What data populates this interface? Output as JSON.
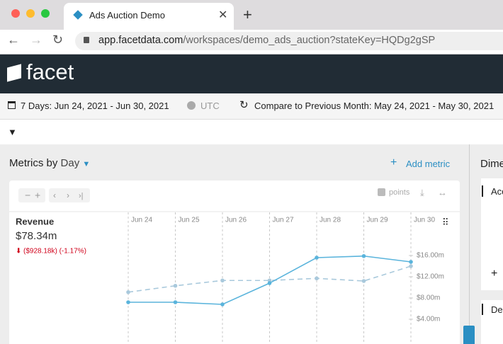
{
  "browser": {
    "tab_title": "Ads Auction Demo",
    "url_host": "app.facetdata.com",
    "url_path": "/workspaces/demo_ads_auction?stateKey=HQDg2gSP"
  },
  "app": {
    "logo": "facet",
    "date_range": "7 Days: Jun 24, 2021 - Jun 30, 2021",
    "timezone": "UTC",
    "compare": "Compare to Previous Month: May 24, 2021 - May 30, 2021"
  },
  "panel": {
    "title": "Metrics by",
    "granularity": "Day",
    "add_metric": "Add metric",
    "points_label": "points"
  },
  "side_panel": {
    "title": "Dime",
    "sections": [
      "Acc",
      "De"
    ]
  },
  "chart_data": {
    "type": "line",
    "title": "Revenue",
    "summary": "$78.34m",
    "change": "($928.18k) (-1.17%)",
    "categories": [
      "Jun 24",
      "Jun 25",
      "Jun 26",
      "Jun 27",
      "Jun 28",
      "Jun 29",
      "Jun 30"
    ],
    "series": [
      {
        "color": "#5ab4dc",
        "values": [
          7.2,
          7.2,
          6.8,
          10.8,
          15.6,
          15.9,
          14.8
        ]
      },
      {
        "color": "#a9c9dc",
        "dashed": true,
        "values": [
          9.1,
          10.3,
          11.3,
          11.3,
          11.7,
          11.2,
          14.0
        ]
      }
    ],
    "ylim": [
      0,
      24
    ],
    "yticks": [
      {
        "value": 4,
        "label": "$4.00m"
      },
      {
        "value": 8,
        "label": "$8.00m"
      },
      {
        "value": 12,
        "label": "$12.00m"
      },
      {
        "value": 16,
        "label": "$16.00m"
      }
    ],
    "grid": true
  }
}
